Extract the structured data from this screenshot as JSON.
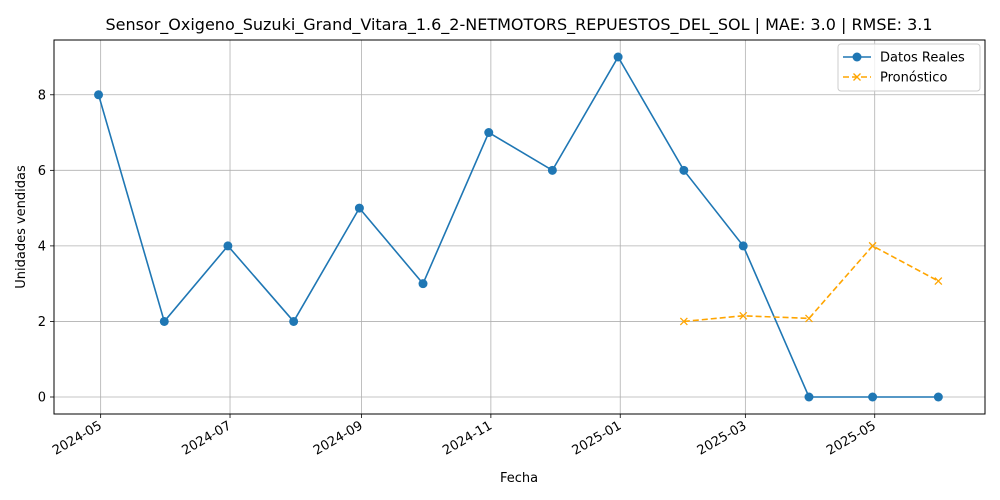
{
  "chart_data": {
    "type": "line",
    "title": "Sensor_Oxigeno_Suzuki_Grand_Vitara_1.6_2-NETMOTORS_REPUESTOS_DEL_SOL | MAE: 3.0 | RMSE: 3.1",
    "xlabel": "Fecha",
    "ylabel": "Unidades vendidas",
    "xlim": [
      "2024-04-09",
      "2025-06-22"
    ],
    "ylim": [
      -0.45,
      9.45
    ],
    "grid": true,
    "legend_position": "top-right",
    "x_ticks": [
      {
        "date": "2024-05-01",
        "label": "2024-05"
      },
      {
        "date": "2024-07-01",
        "label": "2024-07"
      },
      {
        "date": "2024-09-01",
        "label": "2024-09"
      },
      {
        "date": "2024-11-01",
        "label": "2024-11"
      },
      {
        "date": "2025-01-01",
        "label": "2025-01"
      },
      {
        "date": "2025-03-01",
        "label": "2025-03"
      },
      {
        "date": "2025-05-01",
        "label": "2025-05"
      }
    ],
    "y_ticks": [
      0,
      2,
      4,
      6,
      8
    ],
    "series": [
      {
        "name": "Datos Reales",
        "color": "#1f77b4",
        "style": "solid",
        "marker": "circle",
        "points": [
          {
            "x": "2024-04-30",
            "y": 8
          },
          {
            "x": "2024-05-31",
            "y": 2
          },
          {
            "x": "2024-06-30",
            "y": 4
          },
          {
            "x": "2024-07-31",
            "y": 2
          },
          {
            "x": "2024-08-31",
            "y": 5
          },
          {
            "x": "2024-09-30",
            "y": 3
          },
          {
            "x": "2024-10-31",
            "y": 7
          },
          {
            "x": "2024-11-30",
            "y": 6
          },
          {
            "x": "2024-12-31",
            "y": 9
          },
          {
            "x": "2025-01-31",
            "y": 6
          },
          {
            "x": "2025-02-28",
            "y": 4
          },
          {
            "x": "2025-03-31",
            "y": 0
          },
          {
            "x": "2025-04-30",
            "y": 0
          },
          {
            "x": "2025-05-31",
            "y": 0
          }
        ]
      },
      {
        "name": "Pronóstico",
        "color": "#ffa500",
        "style": "dashed",
        "marker": "x",
        "points": [
          {
            "x": "2025-01-31",
            "y": 2.0
          },
          {
            "x": "2025-02-28",
            "y": 2.15
          },
          {
            "x": "2025-03-31",
            "y": 2.08
          },
          {
            "x": "2025-04-30",
            "y": 4.0
          },
          {
            "x": "2025-05-31",
            "y": 3.07
          }
        ]
      }
    ]
  }
}
